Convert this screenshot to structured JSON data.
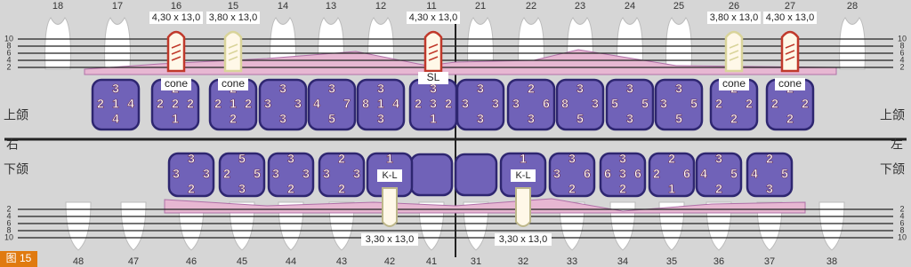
{
  "figure_label": "图 15",
  "side_labels": {
    "upper_right": "上颌",
    "right": "右",
    "lower_right": "下颌",
    "upper_left": "上颌",
    "left": "左",
    "lower_left": "下颌"
  },
  "upper_numbers": [
    18,
    17,
    16,
    15,
    14,
    13,
    12,
    11,
    21,
    22,
    23,
    24,
    25,
    26,
    27,
    28
  ],
  "lower_numbers": [
    48,
    47,
    46,
    45,
    44,
    43,
    42,
    41,
    31,
    32,
    33,
    34,
    35,
    36,
    37,
    38
  ],
  "scale_upper": [
    10,
    8,
    6,
    4,
    2
  ],
  "scale_lower": [
    2,
    4,
    6,
    8,
    10
  ],
  "upper_squares": [
    {
      "top": 3,
      "left": 2,
      "center": 1,
      "right": 4,
      "bottom": 4
    },
    {
      "top": 2,
      "left": 2,
      "center": 2,
      "right": 2,
      "bottom": 1
    },
    {
      "top": 2,
      "left": 2,
      "center": 1,
      "right": 2,
      "bottom": 2
    },
    {
      "top": 3,
      "left": 3,
      "right": 3,
      "bottom": 3
    },
    {
      "top": 3,
      "left": 4,
      "right": 7,
      "bottom": 5
    },
    {
      "top": 3,
      "left": 8,
      "center": 1,
      "right": 4,
      "bottom": 3
    },
    {
      "top": 3,
      "left": 2,
      "center": 3,
      "right": 2,
      "bottom": 1
    },
    {
      "top": 3,
      "left": 3,
      "right": 3,
      "bottom": 3
    },
    {
      "top": 2,
      "left": 3,
      "right": 6,
      "bottom": 3
    },
    {
      "top": 3,
      "left": 8,
      "right": 3,
      "bottom": 5
    },
    {
      "top": 3,
      "left": 5,
      "right": 5,
      "bottom": 3
    },
    {
      "top": 3,
      "left": 3,
      "right": 5,
      "bottom": 5
    },
    {
      "top": 2,
      "left": 2,
      "right": 2,
      "bottom": 2
    },
    {
      "top": 2,
      "left": 2,
      "right": 2,
      "bottom": 2
    }
  ],
  "lower_squares": [
    {
      "top": 3,
      "left": 3,
      "right": 3,
      "bottom": 2
    },
    {
      "top": 5,
      "left": 2,
      "right": 5,
      "bottom": 3
    },
    {
      "top": 3,
      "left": 3,
      "right": 3,
      "bottom": 2
    },
    {
      "top": 2,
      "left": 3,
      "right": 3,
      "bottom": 2
    },
    {
      "top": 1,
      "label": "K-L"
    },
    {
      "top": 1,
      "label": "K-L"
    },
    {
      "top": 3,
      "left": 3,
      "right": 6,
      "bottom": 2
    },
    {
      "top": 3,
      "left": 6,
      "center": 3,
      "right": 6,
      "bottom": 2
    },
    {
      "top": 2,
      "left": 2,
      "right": 6,
      "bottom": 1
    },
    {
      "top": 3,
      "left": 4,
      "right": 5,
      "bottom": 2
    },
    {
      "top": 2,
      "left": 4,
      "right": 5,
      "bottom": 3
    }
  ],
  "upper_implants": [
    {
      "size": "4,30 x 13,0",
      "tag": "cone",
      "color": "#c0392b"
    },
    {
      "size": "3,80 x 13,0",
      "tag": "cone",
      "color": "#d9d49a"
    },
    {
      "size": "4,30 x 13,0",
      "tag": "SL",
      "color": "#c0392b"
    },
    {
      "size": "3,80 x 13,0",
      "tag": "cone",
      "color": "#d9d49a"
    },
    {
      "size": "4,30 x 13,0",
      "tag": "cone",
      "color": "#c0392b"
    }
  ],
  "lower_implants": [
    {
      "size": "3,30 x 13,0"
    },
    {
      "size": "3,30 x 13,0"
    }
  ]
}
